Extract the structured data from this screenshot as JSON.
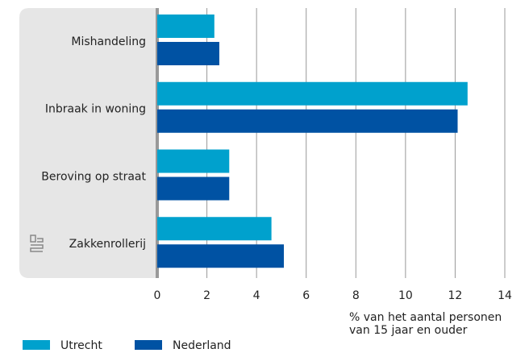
{
  "chart_data": {
    "type": "barh",
    "categories": [
      "Mishandeling",
      "Inbraak in woning",
      "Beroving op straat",
      "Zakkenrollerij"
    ],
    "series": [
      {
        "name": "Utrecht",
        "color": "#00a1cd",
        "values": [
          2.3,
          12.5,
          2.9,
          4.6
        ]
      },
      {
        "name": "Nederland",
        "color": "#0052a3",
        "values": [
          2.5,
          12.1,
          2.9,
          5.1
        ]
      }
    ],
    "xlim": [
      0,
      14
    ],
    "xticks": [
      0,
      2,
      4,
      6,
      8,
      10,
      12,
      14
    ],
    "xlabel": [
      "% van het aantal personen",
      "van 15 jaar en ouder"
    ],
    "grid": true
  }
}
